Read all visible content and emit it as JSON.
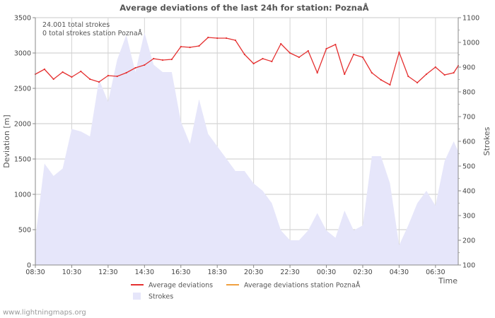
{
  "footer": {
    "credit": "www.lightningmaps.org"
  },
  "chart_data": {
    "type": "line",
    "title": "Average deviations of the last 24h for station: PoznaÅ",
    "annotations": [
      "24.001 total strokes",
      "0 total strokes station PoznaÅ"
    ],
    "xlabel": "Time",
    "ylabel_left": "Deviation  [m]",
    "ylabel_right": "Strokes",
    "ylim_left": [
      0,
      3500
    ],
    "ylim_right": [
      100,
      1100
    ],
    "yticks_left": [
      0,
      500,
      1000,
      1500,
      2000,
      2500,
      3000,
      3500
    ],
    "yticks_right": [
      100,
      200,
      300,
      400,
      500,
      600,
      700,
      800,
      900,
      1000,
      1100
    ],
    "xlim": [
      0,
      93
    ],
    "xticks": [
      {
        "t": 0,
        "label": "08:30"
      },
      {
        "t": 8,
        "label": "10:30"
      },
      {
        "t": 16,
        "label": "12:30"
      },
      {
        "t": 24,
        "label": "14:30"
      },
      {
        "t": 32,
        "label": "16:30"
      },
      {
        "t": 40,
        "label": "18:30"
      },
      {
        "t": 48,
        "label": "20:30"
      },
      {
        "t": 56,
        "label": "22:30"
      },
      {
        "t": 64,
        "label": "00:30"
      },
      {
        "t": 72,
        "label": "02:30"
      },
      {
        "t": 80,
        "label": "04:30"
      },
      {
        "t": 88,
        "label": "06:30"
      }
    ],
    "grid": true,
    "legend": [
      {
        "name": "Average deviations",
        "color": "#e53030",
        "kind": "line"
      },
      {
        "name": "Average deviations station PoznaÅ",
        "color": "#f0a040",
        "kind": "line"
      },
      {
        "name": "Strokes",
        "color": "#e6e6fa",
        "kind": "area"
      }
    ],
    "series": [
      {
        "name": "Average deviations",
        "axis": "left",
        "color": "#e53030",
        "t": [
          0,
          2,
          4,
          6,
          8,
          10,
          12,
          14,
          16,
          18,
          20,
          22,
          24,
          26,
          28,
          30,
          32,
          34,
          36,
          38,
          40,
          42,
          44,
          46,
          48,
          50,
          52,
          54,
          56,
          58,
          60,
          62,
          64,
          66,
          68,
          70,
          72,
          74,
          76,
          78,
          80,
          82,
          84,
          86,
          88,
          90,
          92,
          93
        ],
        "values": [
          2700,
          2770,
          2630,
          2730,
          2660,
          2740,
          2630,
          2590,
          2680,
          2670,
          2720,
          2790,
          2830,
          2920,
          2900,
          2910,
          3090,
          3080,
          3100,
          3220,
          3210,
          3210,
          3180,
          2980,
          2850,
          2920,
          2880,
          3130,
          3000,
          2940,
          3030,
          2720,
          3060,
          3120,
          2700,
          2980,
          2940,
          2720,
          2620,
          2550,
          3010,
          2670,
          2580,
          2700,
          2800,
          2690,
          2720,
          2820
        ]
      },
      {
        "name": "Strokes",
        "axis": "right",
        "color": "#e6e6fa",
        "t": [
          0,
          2,
          4,
          6,
          8,
          10,
          12,
          14,
          16,
          18,
          20,
          22,
          24,
          26,
          28,
          30,
          32,
          34,
          36,
          38,
          40,
          42,
          44,
          46,
          48,
          50,
          52,
          54,
          56,
          58,
          60,
          62,
          64,
          66,
          68,
          70,
          72,
          74,
          76,
          78,
          80,
          82,
          84,
          86,
          88,
          90,
          92,
          93
        ],
        "values": [
          210,
          510,
          460,
          490,
          650,
          640,
          620,
          850,
          760,
          930,
          1030,
          880,
          1040,
          910,
          880,
          880,
          680,
          590,
          770,
          630,
          580,
          530,
          480,
          480,
          430,
          400,
          350,
          240,
          200,
          200,
          240,
          310,
          240,
          210,
          320,
          240,
          260,
          540,
          540,
          430,
          180,
          260,
          350,
          400,
          340,
          520,
          600,
          560
        ]
      }
    ]
  }
}
